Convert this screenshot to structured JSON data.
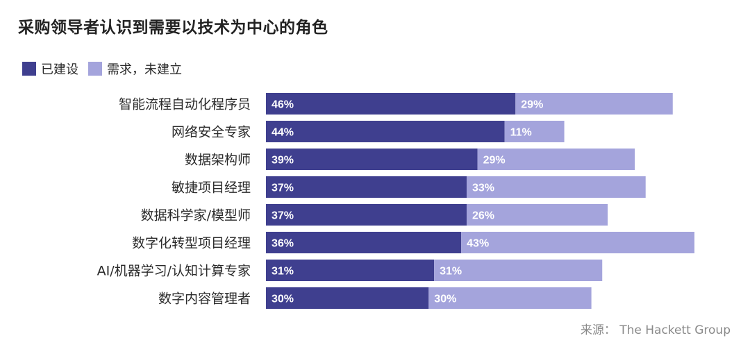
{
  "chart_data": {
    "type": "bar",
    "orientation": "horizontal",
    "stacked": true,
    "title": "采购领导者认识到需要以技术为中心的角色",
    "categories": [
      "智能流程自动化程序员",
      "网络安全专家",
      "数据架构师",
      "敏捷项目经理",
      "数据科学家/模型师",
      "数字化转型项目经理",
      "AI/机器学习/认知计算专家",
      "数字内容管理者"
    ],
    "series": [
      {
        "name": "已建设",
        "color": "#3f3f8f",
        "values": [
          46,
          44,
          39,
          37,
          37,
          36,
          31,
          30
        ],
        "labels": [
          "46%",
          "44%",
          "39%",
          "37%",
          "37%",
          "36%",
          "31%",
          "30%"
        ]
      },
      {
        "name": "需求，未建立",
        "color": "#a4a4dc",
        "values": [
          29,
          11,
          29,
          33,
          26,
          43,
          31,
          30
        ],
        "labels": [
          "29%",
          "11%",
          "29%",
          "33%",
          "26%",
          "43%",
          "31%",
          "30%"
        ]
      }
    ],
    "xlim": [
      0,
      79
    ],
    "grid": false,
    "legend_position": "top-left",
    "source": "来源： The Hackett Group"
  }
}
